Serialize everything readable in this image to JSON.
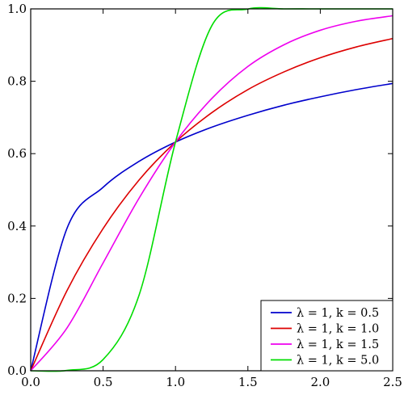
{
  "chart_data": {
    "type": "line",
    "title": "",
    "xlabel": "",
    "ylabel": "",
    "xlim": [
      0,
      2.5
    ],
    "ylim": [
      0,
      1
    ],
    "xticks": [
      0,
      0.5,
      1,
      1.5,
      2,
      2.5
    ],
    "yticks": [
      0,
      0.2,
      0.4,
      0.6,
      0.8,
      1
    ],
    "xtick_labels": [
      "0.0",
      "0.5",
      "1.0",
      "1.5",
      "2.0",
      "2.5"
    ],
    "ytick_labels": [
      "0.0",
      "0.2",
      "0.4",
      "0.6",
      "0.8",
      "1.0"
    ],
    "grid": false,
    "legend_position": "bottom-right",
    "x": [
      0,
      0.25,
      0.5,
      0.75,
      1.0,
      1.25,
      1.5,
      1.75,
      2.0,
      2.25,
      2.5
    ],
    "series": [
      {
        "name": "λ = 1, k = 0.5",
        "color": "#0000cc",
        "values": [
          0,
          0.393,
          0.507,
          0.579,
          0.632,
          0.673,
          0.706,
          0.734,
          0.757,
          0.777,
          0.794
        ]
      },
      {
        "name": "λ = 1, k = 1.0",
        "color": "#dd0000",
        "values": [
          0,
          0.221,
          0.393,
          0.528,
          0.632,
          0.713,
          0.777,
          0.826,
          0.865,
          0.895,
          0.918
        ]
      },
      {
        "name": "λ = 1, k = 1.5",
        "color": "#ee00ee",
        "values": [
          0,
          0.118,
          0.298,
          0.478,
          0.632,
          0.752,
          0.841,
          0.901,
          0.941,
          0.966,
          0.981
        ]
      },
      {
        "name": "λ = 1, k = 5.0",
        "color": "#00dd00",
        "values": [
          0,
          0.001,
          0.031,
          0.211,
          0.632,
          0.953,
          0.9995,
          1.0,
          1.0,
          1.0,
          1.0
        ]
      }
    ]
  }
}
